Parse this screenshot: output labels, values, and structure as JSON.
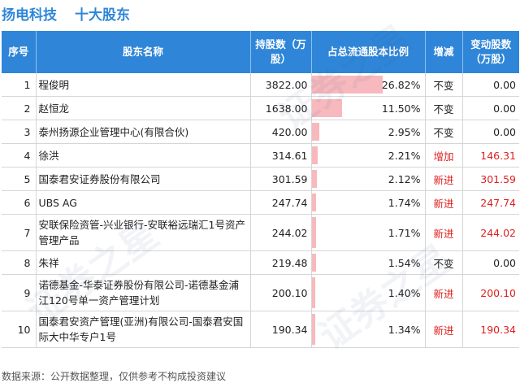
{
  "header": {
    "company": "扬电科技",
    "subtitle": "十大股东"
  },
  "columns": {
    "rank": "序号",
    "name": "股东名称",
    "shares": "持股数（万股）",
    "ratio": "占总流通股本比例",
    "change": "增减",
    "amount": "变动股数（万股）"
  },
  "rows": [
    {
      "rank": "1",
      "name": "程俊明",
      "shares": "3822.00",
      "ratio": "26.82%",
      "ratio_value": 26.82,
      "change": "不变",
      "amount": "0.00",
      "up": false
    },
    {
      "rank": "2",
      "name": "赵恒龙",
      "shares": "1638.00",
      "ratio": "11.50%",
      "ratio_value": 11.5,
      "change": "不变",
      "amount": "0.00",
      "up": false
    },
    {
      "rank": "3",
      "name": "泰州扬源企业管理中心(有限合伙)",
      "shares": "420.00",
      "ratio": "2.95%",
      "ratio_value": 2.95,
      "change": "不变",
      "amount": "0.00",
      "up": false
    },
    {
      "rank": "4",
      "name": "徐洪",
      "shares": "314.61",
      "ratio": "2.21%",
      "ratio_value": 2.21,
      "change": "增加",
      "amount": "146.31",
      "up": true
    },
    {
      "rank": "5",
      "name": "国泰君安证券股份有限公司",
      "shares": "301.59",
      "ratio": "2.12%",
      "ratio_value": 2.12,
      "change": "新进",
      "amount": "301.59",
      "up": true
    },
    {
      "rank": "6",
      "name": "UBS AG",
      "shares": "247.74",
      "ratio": "1.74%",
      "ratio_value": 1.74,
      "change": "新进",
      "amount": "247.74",
      "up": true
    },
    {
      "rank": "7",
      "name": "安联保险资管-兴业银行-安联裕远瑞汇1号资产管理产品",
      "shares": "244.02",
      "ratio": "1.71%",
      "ratio_value": 1.71,
      "change": "新进",
      "amount": "244.02",
      "up": true,
      "tall": true
    },
    {
      "rank": "8",
      "name": "朱祥",
      "shares": "219.48",
      "ratio": "1.54%",
      "ratio_value": 1.54,
      "change": "不变",
      "amount": "0.00",
      "up": false
    },
    {
      "rank": "9",
      "name": "诺德基金-华泰证券股份有限公司-诺德基金浦江120号单一资产管理计划",
      "shares": "200.10",
      "ratio": "1.40%",
      "ratio_value": 1.4,
      "change": "新进",
      "amount": "200.10",
      "up": true,
      "tall": true
    },
    {
      "rank": "10",
      "name": "国泰君安资产管理(亚洲)有限公司-国泰君安国际大中华专户1号",
      "shares": "190.34",
      "ratio": "1.34%",
      "ratio_value": 1.34,
      "change": "新进",
      "amount": "190.34",
      "up": true,
      "tall": true
    }
  ],
  "footer": "数据来源：公开数据整理，仅供参考不构成投资建议",
  "colors": {
    "header_bg": "#2f86d8",
    "bar": "#f7b9bd",
    "up_text": "#e02020"
  }
}
